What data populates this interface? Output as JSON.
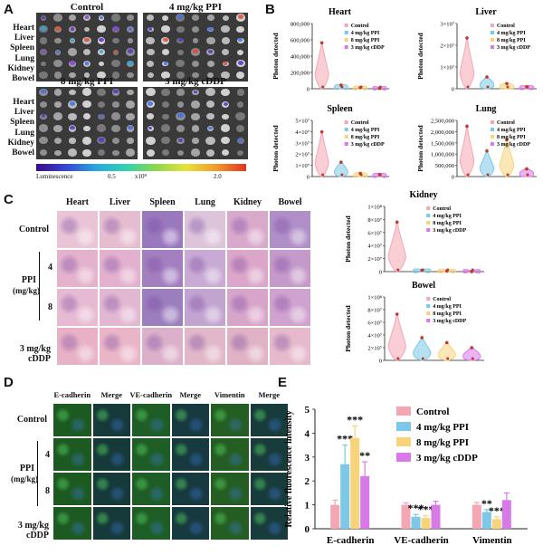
{
  "panels": {
    "A": "A",
    "B": "B",
    "C": "C",
    "D": "D",
    "E": "E"
  },
  "panelA": {
    "groups": [
      "Control",
      "4 mg/kg PPI",
      "8 mg/kg PPI",
      "3 mg/kg cDDP"
    ],
    "organs": [
      "Heart",
      "Liver",
      "Spleen",
      "Lung",
      "Kidney",
      "Bowel"
    ],
    "colorbar": {
      "label": "Luminescence",
      "tick1": "0.5",
      "tick2": "x10⁸",
      "tick3": "2.0"
    }
  },
  "panelC": {
    "columns": [
      "Heart",
      "Liver",
      "Spleen",
      "Lung",
      "Kidney",
      "Bowel"
    ],
    "rows": {
      "control": "Control",
      "ppi": "PPI",
      "ppi_unit": "(mg/kg)",
      "dose4": "4",
      "dose8": "8",
      "cddp1": "3 mg/kg",
      "cddp2": "cDDP"
    }
  },
  "panelD": {
    "columns": [
      "E-cadherin",
      "Merge",
      "VE-cadherin",
      "Merge",
      "Vimentin",
      "Merge"
    ],
    "rows": {
      "control": "Control",
      "ppi": "PPI",
      "ppi_unit": "(mg/kg)",
      "dose4": "4",
      "dose8": "8",
      "cddp1": "3 mg/kg",
      "cddp2": "cDDP"
    }
  },
  "legend_groups": [
    "Control",
    "4 mg/kg PPI",
    "8 mg/kg PPI",
    "3 mg/kg cDDP"
  ],
  "colors": {
    "control": "#f4a6b3",
    "ppi4": "#7cc8e6",
    "ppi8": "#f7d37a",
    "cddp": "#d879e8"
  },
  "violins": [
    {
      "id": "heart",
      "title": "Heart",
      "ylabel": "Photon detected",
      "ticks": [
        "0",
        "200,000",
        "400,000",
        "600,000",
        "800,000"
      ],
      "max": 800000,
      "values": [
        580000,
        60000,
        30000,
        20000
      ]
    },
    {
      "id": "liver",
      "title": "Liver",
      "ylabel": "Photon detected",
      "ticks": [
        "0",
        "1×10⁷",
        "2×10⁷",
        "3×10⁷"
      ],
      "max": 30000000,
      "values": [
        24000000,
        6000000,
        3000000,
        1500000
      ]
    },
    {
      "id": "spleen",
      "title": "Spleen",
      "ylabel": "Photon detected",
      "ticks": [
        "0",
        "1×10⁷",
        "2×10⁷",
        "3×10⁷",
        "4×10⁷",
        "5×10⁷"
      ],
      "max": 50000000,
      "values": [
        41000000,
        14000000,
        4000000,
        3000000
      ]
    },
    {
      "id": "lung",
      "title": "Lung",
      "ylabel": "Photon detected",
      "ticks": [
        "0",
        "500,000",
        "1,000,000",
        "1,500,000",
        "2,000,000",
        "2,500,000"
      ],
      "max": 2500000,
      "values": [
        2300000,
        1200000,
        1700000,
        400000
      ]
    },
    {
      "id": "kidney",
      "title": "Kidney",
      "ylabel": "Photon detected",
      "ticks": [
        "0",
        "2×10⁷",
        "4×10⁷",
        "6×10⁷",
        "8×10⁷",
        "1×10⁸"
      ],
      "max": 100000000,
      "values": [
        78000000,
        4000000,
        3000000,
        2000000
      ]
    },
    {
      "id": "bowel",
      "title": "Bowel",
      "ylabel": "Photon detected",
      "ticks": [
        "0",
        "2×10⁷",
        "4×10⁷",
        "6×10⁷",
        "8×10⁷",
        "1×10⁸"
      ],
      "max": 100000000,
      "values": [
        75000000,
        38000000,
        30000000,
        22000000
      ]
    }
  ],
  "chart_data": {
    "type": "bar",
    "categories": [
      "E-cadherin",
      "VE-cadherin",
      "Vimentin"
    ],
    "ylabel": "Relative fluorescence intensity",
    "ylim": [
      0,
      5
    ],
    "yticks": [
      "0",
      "1",
      "2",
      "3",
      "4",
      "5"
    ],
    "series": [
      {
        "name": "Control",
        "values": [
          1.0,
          1.0,
          1.0
        ],
        "errors": [
          0.2,
          0.08,
          0.1
        ],
        "sig": [
          "",
          "",
          ""
        ]
      },
      {
        "name": "4 mg/kg PPI",
        "values": [
          2.7,
          0.5,
          0.7
        ],
        "errors": [
          0.8,
          0.1,
          0.1
        ],
        "sig": [
          "***",
          "***",
          "**"
        ]
      },
      {
        "name": "8 mg/kg PPI",
        "values": [
          3.8,
          0.45,
          0.4
        ],
        "errors": [
          0.5,
          0.1,
          0.1
        ],
        "sig": [
          "***",
          "***",
          "***"
        ]
      },
      {
        "name": "3 mg/kg cDDP",
        "values": [
          2.2,
          1.0,
          1.2
        ],
        "errors": [
          0.6,
          0.15,
          0.3
        ],
        "sig": [
          "**",
          "",
          ""
        ]
      }
    ],
    "legend": "top-right"
  }
}
